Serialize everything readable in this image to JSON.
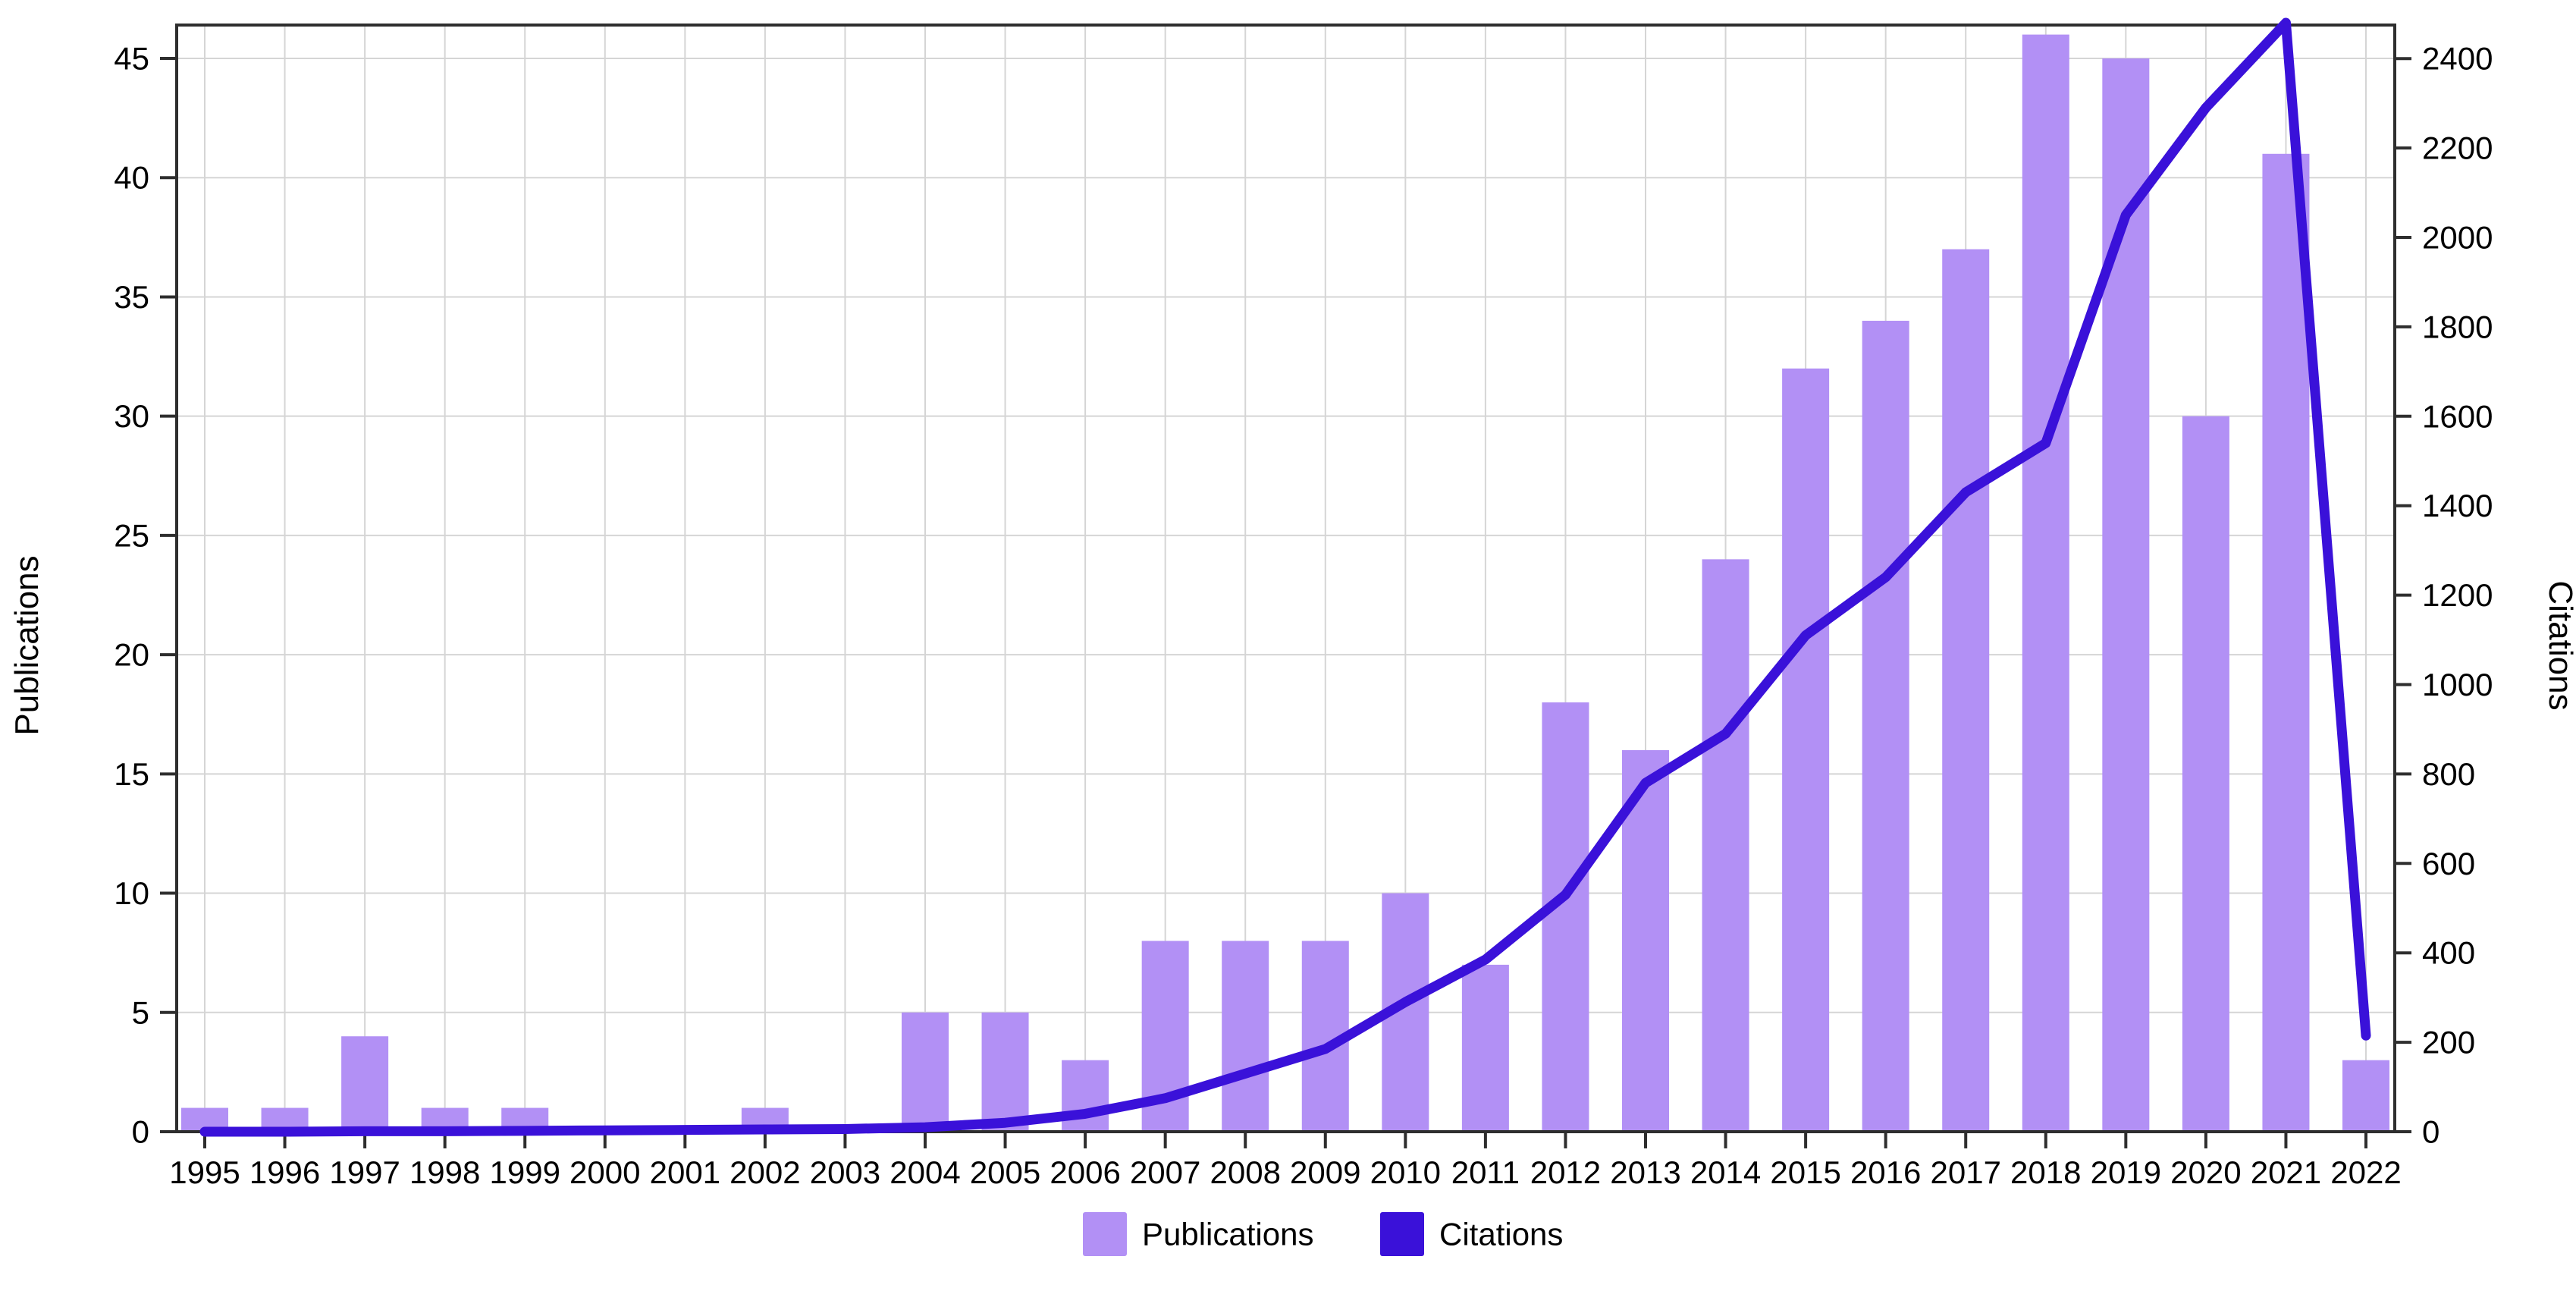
{
  "chart_data": {
    "type": "bar+line",
    "title": "",
    "categories": [
      "1995",
      "1996",
      "1997",
      "1998",
      "1999",
      "2000",
      "2001",
      "2002",
      "2003",
      "2004",
      "2005",
      "2006",
      "2007",
      "2008",
      "2009",
      "2010",
      "2011",
      "2012",
      "2013",
      "2014",
      "2015",
      "2016",
      "2017",
      "2018",
      "2019",
      "2020",
      "2021",
      "2022"
    ],
    "series": [
      {
        "name": "Publications",
        "type": "bar",
        "axis": "left",
        "color": "#b290f5",
        "values": [
          1,
          1,
          4,
          1,
          1,
          0,
          0,
          1,
          0,
          5,
          5,
          3,
          8,
          8,
          8,
          10,
          7,
          18,
          16,
          24,
          32,
          34,
          37,
          46,
          45,
          30,
          41,
          3
        ]
      },
      {
        "name": "Citations",
        "type": "line",
        "axis": "right",
        "color": "#3a11d9",
        "values": [
          0,
          0,
          1,
          1,
          2,
          3,
          4,
          5,
          6,
          10,
          20,
          40,
          75,
          130,
          185,
          290,
          385,
          530,
          780,
          890,
          1110,
          1240,
          1430,
          1540,
          2050,
          2290,
          2480,
          215
        ]
      }
    ],
    "left_axis": {
      "label": "Publications",
      "ticks": [
        0,
        5,
        10,
        15,
        20,
        25,
        30,
        35,
        40,
        45
      ],
      "range": [
        0,
        46.4
      ]
    },
    "right_axis": {
      "label": "Citations",
      "ticks": [
        0,
        200,
        400,
        600,
        800,
        1000,
        1200,
        1400,
        1600,
        1800,
        2000,
        2200,
        2400
      ],
      "range": [
        0,
        2475
      ]
    },
    "legend": {
      "position": "bottom-center",
      "entries": [
        {
          "label": "Publications",
          "color": "#b290f5"
        },
        {
          "label": "Citations",
          "color": "#3a11d9"
        }
      ]
    },
    "grid": {
      "vertical": true,
      "horizontal": true,
      "color": "#d5d5d5"
    },
    "frame_color": "#2e2e2e",
    "text_color": "#000000",
    "background": "#ffffff"
  }
}
